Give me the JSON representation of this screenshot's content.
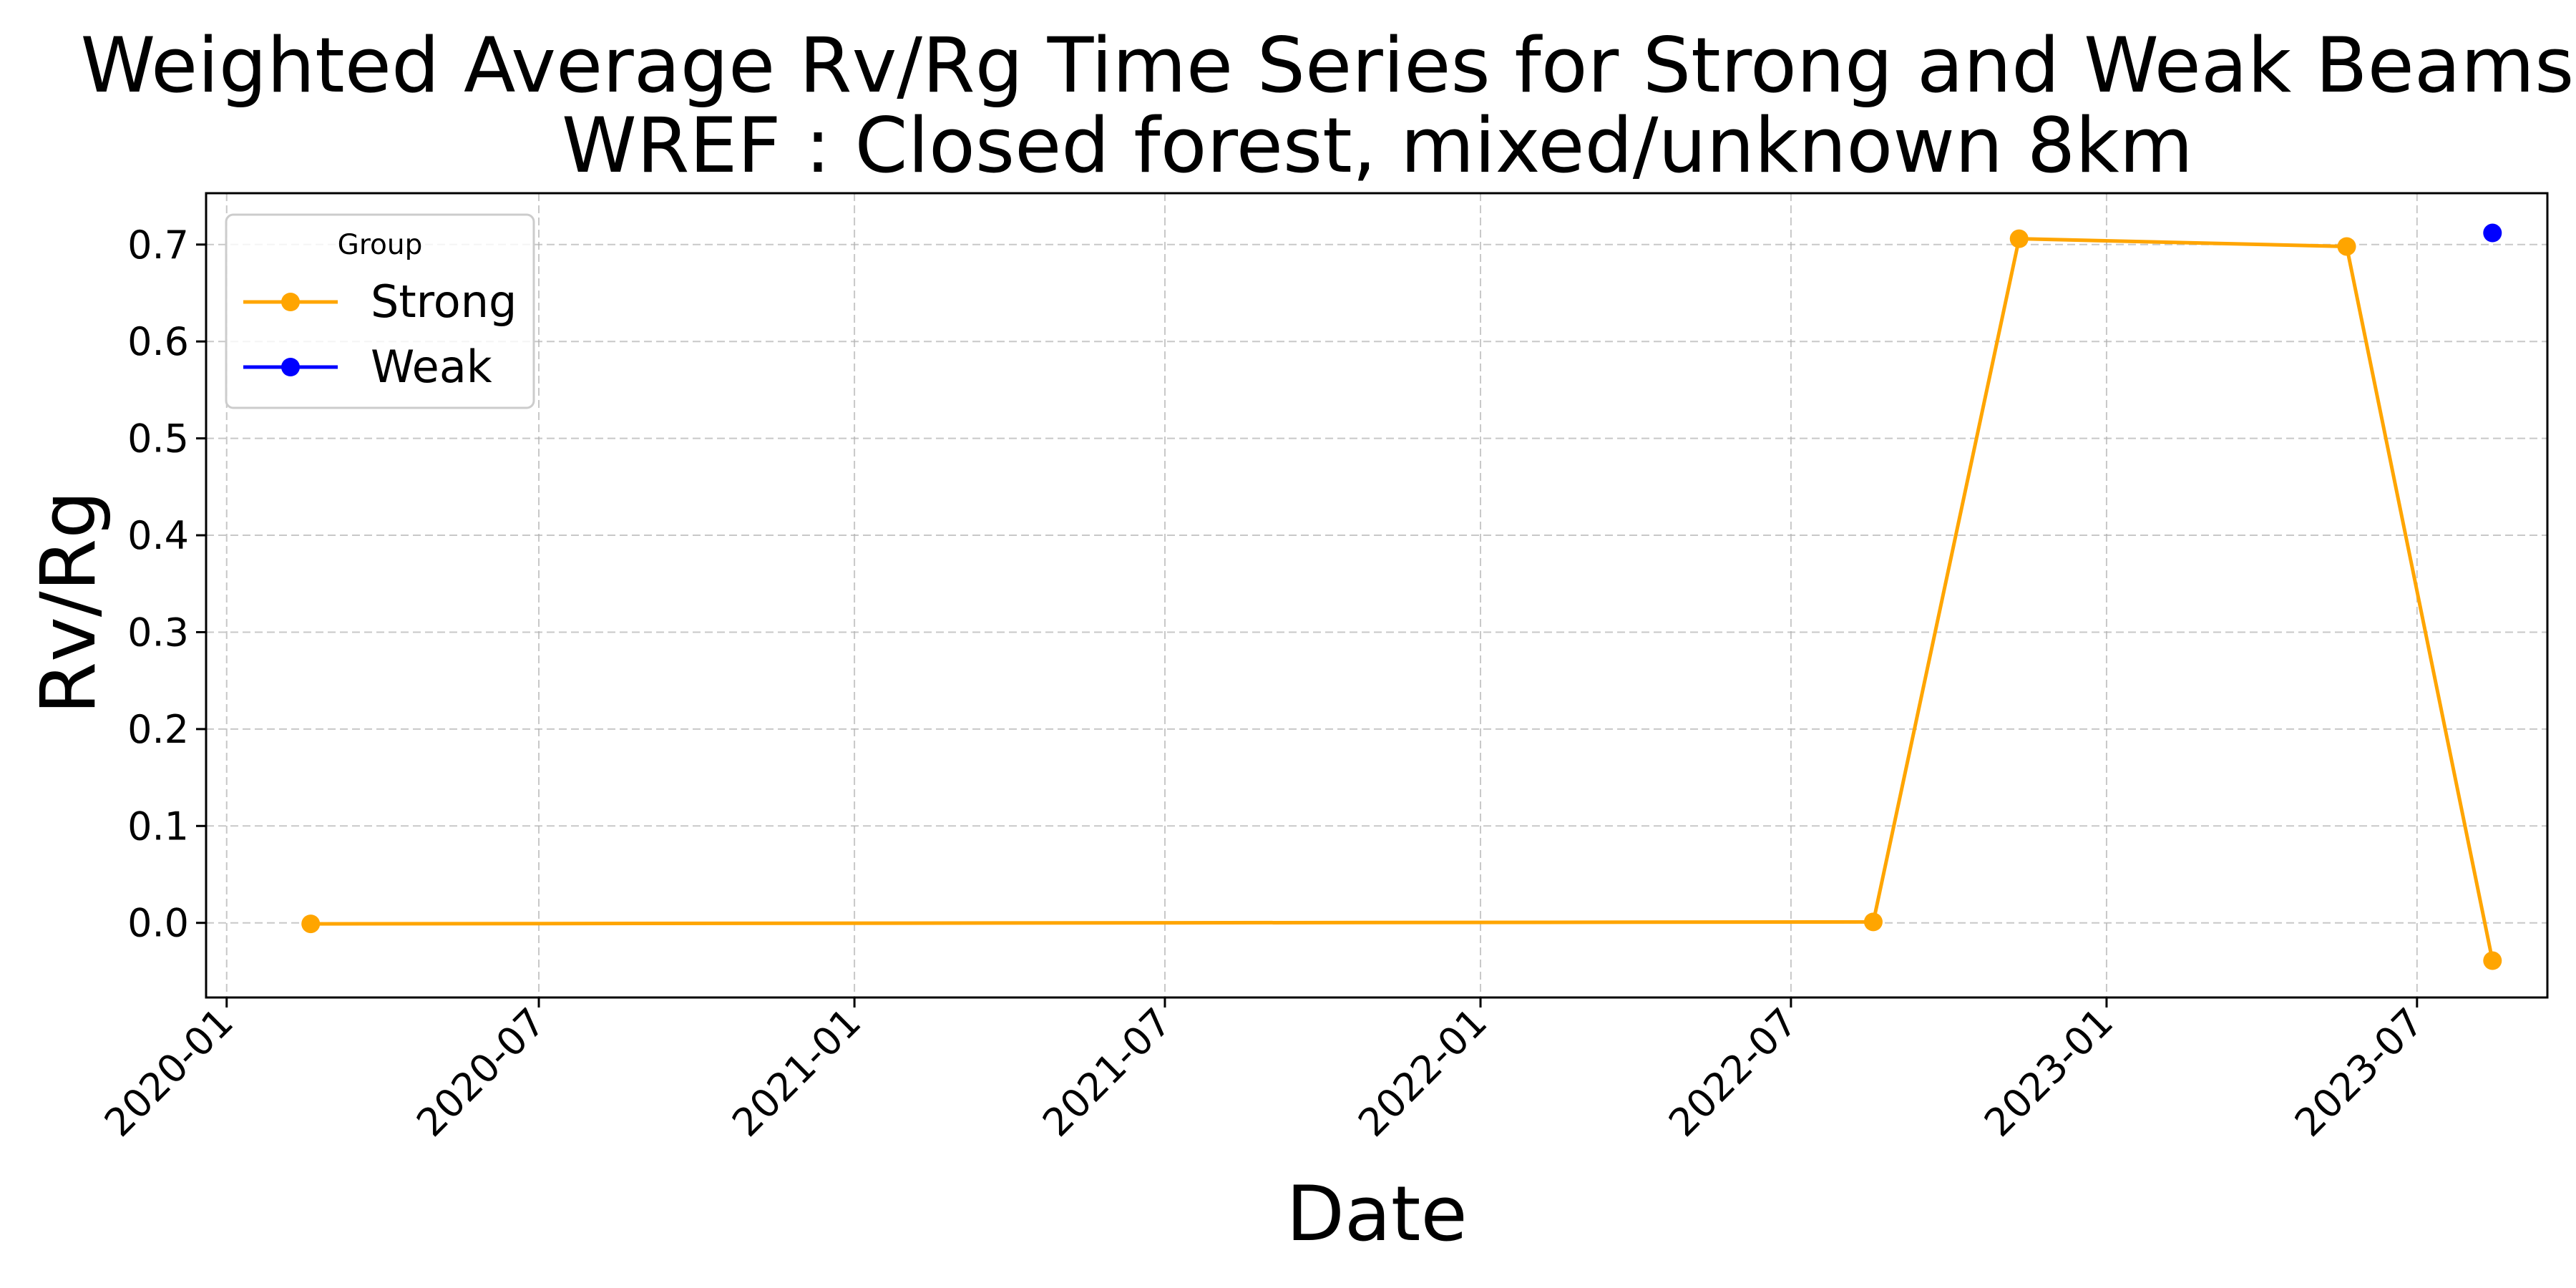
{
  "chart_data": {
    "type": "line",
    "title_line1": "Weighted Average Rv/Rg Time Series for Strong and Weak Beams at",
    "title_line2": "WREF : Closed forest, mixed/unknown 8km",
    "xlabel": "Date",
    "ylabel": "Rv/Rg",
    "x_ticks": [
      "2020-01",
      "2020-07",
      "2021-01",
      "2021-07",
      "2022-01",
      "2022-07",
      "2023-01",
      "2023-07"
    ],
    "y_ticks": [
      "0.0",
      "0.1",
      "0.2",
      "0.3",
      "0.4",
      "0.5",
      "0.6",
      "0.7"
    ],
    "xlim": [
      "2019-12-20",
      "2023-09-15"
    ],
    "ylim": [
      -0.077,
      0.753
    ],
    "grid": true,
    "legend": {
      "title": "Group",
      "placement": "top-left",
      "entries": [
        {
          "name": "Strong",
          "color": "#FFA500"
        },
        {
          "name": "Weak",
          "color": "#0000FF"
        }
      ]
    },
    "series": [
      {
        "name": "Strong",
        "color": "#FFA500",
        "points": [
          {
            "x": "2020-02-19",
            "y": -0.001
          },
          {
            "x": "2022-08-18",
            "y": 0.001
          },
          {
            "x": "2022-11-11",
            "y": 0.706
          },
          {
            "x": "2023-05-21",
            "y": 0.698
          },
          {
            "x": "2023-08-14",
            "y": -0.039
          }
        ]
      },
      {
        "name": "Weak",
        "color": "#0000FF",
        "points": [
          {
            "x": "2023-08-14",
            "y": 0.712
          }
        ]
      }
    ]
  }
}
